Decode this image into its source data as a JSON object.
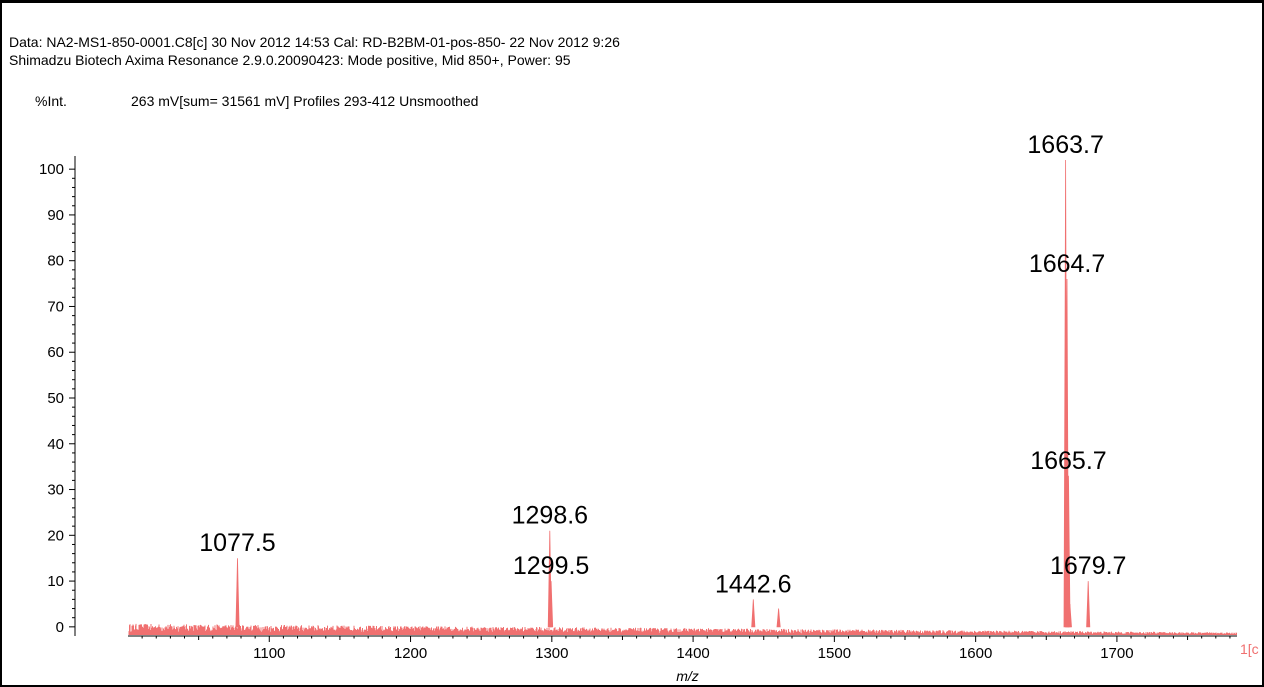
{
  "header": {
    "line1": "Data: NA2-MS1-850-0001.C8[c] 30 Nov 2012 14:53 Cal: RD-B2BM-01-pos-850- 22 Nov 2012 9:26",
    "line2": "Shimadzu Biotech Axima Resonance 2.9.0.20090423: Mode positive, Mid 850+, Power: 95",
    "y_unit": "%Int.",
    "acq_info": "263 mV[sum= 31561 mV]  Profiles 293-412 Unsmoothed"
  },
  "colors": {
    "spectrum": "#f07070",
    "axis": "#000000"
  },
  "chart_data": {
    "type": "line",
    "title": "",
    "xlabel": "m/z",
    "ylabel": "%Int.",
    "xlim": [
      1000,
      1785
    ],
    "ylim": [
      -2,
      102
    ],
    "x_ticks": [
      1100,
      1200,
      1300,
      1400,
      1500,
      1600,
      1700
    ],
    "y_ticks": [
      0,
      10,
      20,
      30,
      40,
      50,
      60,
      70,
      80,
      90,
      100
    ],
    "axis_end_label": "1[c",
    "grid": false,
    "series": [
      {
        "peaks": [
          {
            "x": 1077.5,
            "y": 15
          },
          {
            "x": 1298.6,
            "y": 21
          },
          {
            "x": 1299.5,
            "y": 10
          },
          {
            "x": 1442.6,
            "y": 6
          },
          {
            "x": 1460.5,
            "y": 4
          },
          {
            "x": 1663.7,
            "y": 102
          },
          {
            "x": 1664.7,
            "y": 76
          },
          {
            "x": 1665.7,
            "y": 33
          },
          {
            "x": 1666.7,
            "y": 5
          },
          {
            "x": 1679.7,
            "y": 10
          }
        ]
      }
    ],
    "annotations": [
      {
        "text": "1663.7",
        "x": 1663.7,
        "y": 102
      },
      {
        "text": "1664.7",
        "x": 1664.7,
        "y": 76
      },
      {
        "text": "1665.7",
        "x": 1665.7,
        "y": 33
      },
      {
        "text": "1679.7",
        "x": 1679.7,
        "y": 10
      },
      {
        "text": "1298.6",
        "x": 1298.6,
        "y": 21
      },
      {
        "text": "1299.5",
        "x": 1299.5,
        "y": 10
      },
      {
        "text": "1077.5",
        "x": 1077.5,
        "y": 15
      },
      {
        "text": "1442.6",
        "x": 1442.6,
        "y": 6
      }
    ]
  }
}
